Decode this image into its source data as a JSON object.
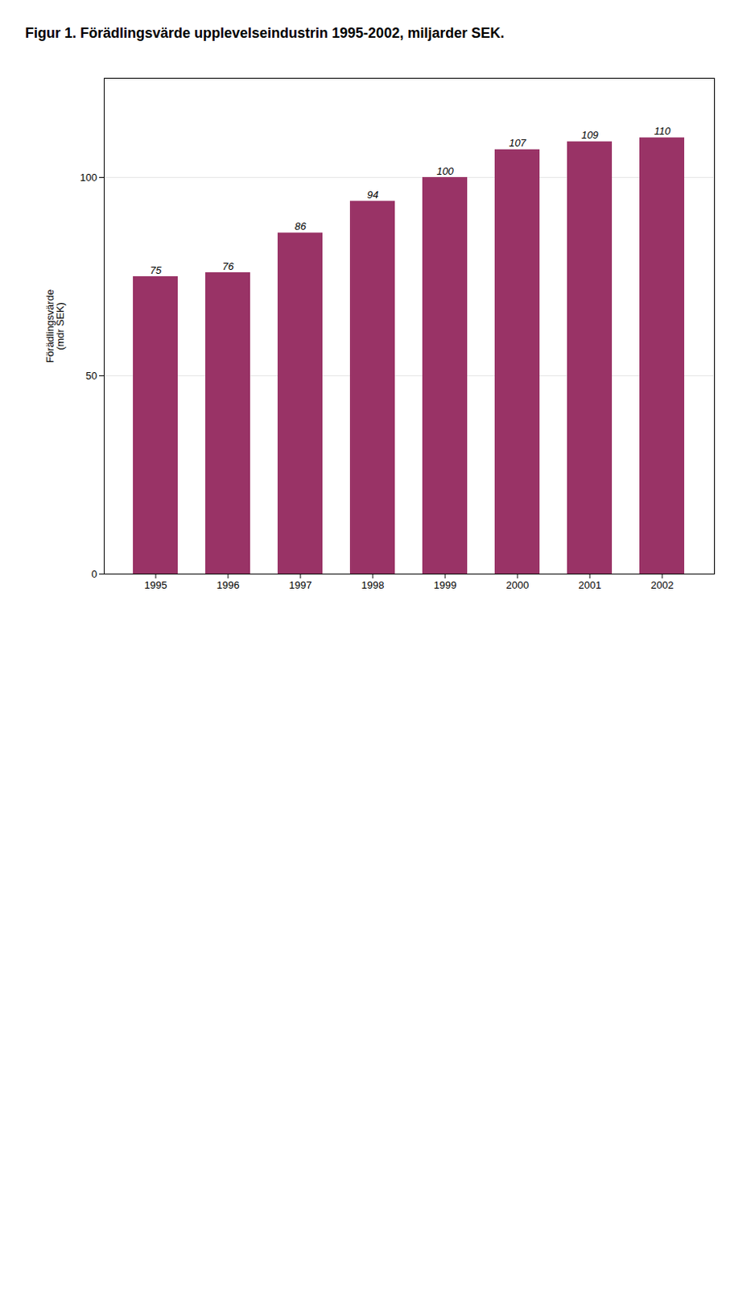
{
  "chart_data": {
    "type": "bar",
    "title": "Figur 1. Förädlingsvärde upplevelseindustrin 1995-2002, miljarder SEK.",
    "categories": [
      "1995",
      "1996",
      "1997",
      "1998",
      "1999",
      "2000",
      "2001",
      "2002"
    ],
    "values": [
      75,
      76,
      86,
      94,
      100,
      107,
      109,
      110
    ],
    "color": "#993366",
    "ylabel": "Förädlingsvärde\n(mdr SEK)",
    "ylim": [
      0,
      125
    ],
    "yticks": [
      0,
      50,
      100
    ],
    "grid": true,
    "data_labels": true
  }
}
